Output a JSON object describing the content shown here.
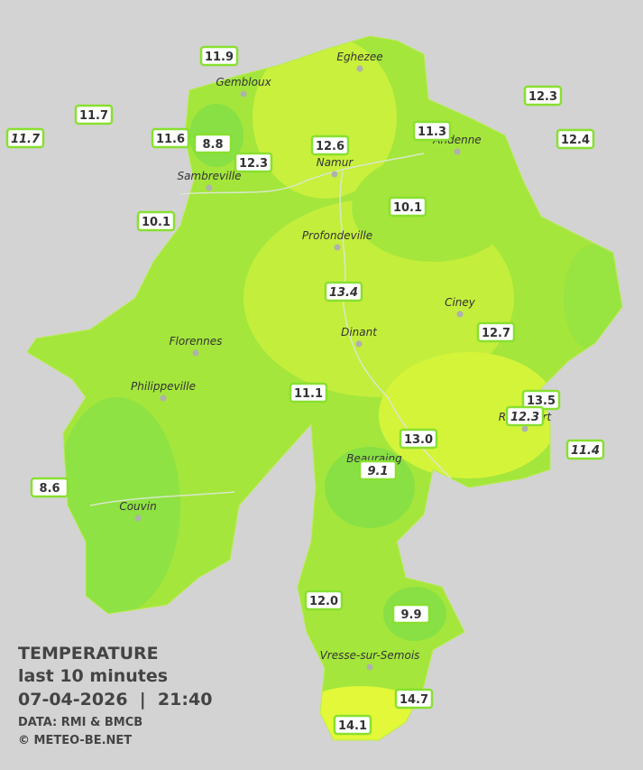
{
  "title": "TEMPERATURE",
  "subtitle": "last 10 minutes",
  "timestamp": "07-04-2026  |  21:40",
  "credits": [
    "DATA: RMI & BMCB",
    "© METEO-BE.NET"
  ],
  "cities": [
    "Eghezee",
    "Gembloux",
    "Andenne",
    "Namur",
    "Sambreville",
    "Profondeville",
    "Ciney",
    "Dinant",
    "Florennes",
    "Philippeville",
    "Rochefort",
    "Beauraing",
    "Couvin",
    "Vresse-sur-Semois"
  ],
  "stations": [
    "11.9",
    "11.7",
    "11.7",
    "11.6",
    "8.8",
    "12.3",
    "12.6",
    "11.3",
    "12.3",
    "12.4",
    "10.1",
    "10.1",
    "13.4",
    "12.7",
    "11.1",
    "13.5",
    "12.3",
    "13.0",
    "11.4",
    "9.1",
    "8.6",
    "12.0",
    "9.9",
    "14.7",
    "14.1"
  ]
}
